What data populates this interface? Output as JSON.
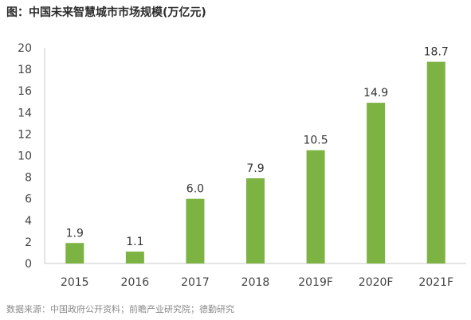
{
  "chart_data": {
    "type": "bar",
    "title": "图：中国未来智慧城市市场规模(万亿元)",
    "categories": [
      "2015",
      "2016",
      "2017",
      "2018",
      "2019F",
      "2020F",
      "2021F"
    ],
    "values": [
      1.9,
      1.1,
      6.0,
      7.9,
      10.5,
      14.9,
      18.7
    ],
    "value_labels": [
      "1.9",
      "1.1",
      "6.0",
      "7.9",
      "10.5",
      "14.9",
      "18.7"
    ],
    "ylim": [
      0,
      20
    ],
    "yticks": [
      0,
      2,
      4,
      6,
      8,
      10,
      12,
      14,
      16,
      18,
      20
    ],
    "grid": false,
    "bar_color": "#7cb342",
    "source": "数据来源：中国政府公开资料；前瞻产业研究院；德勤研究"
  }
}
